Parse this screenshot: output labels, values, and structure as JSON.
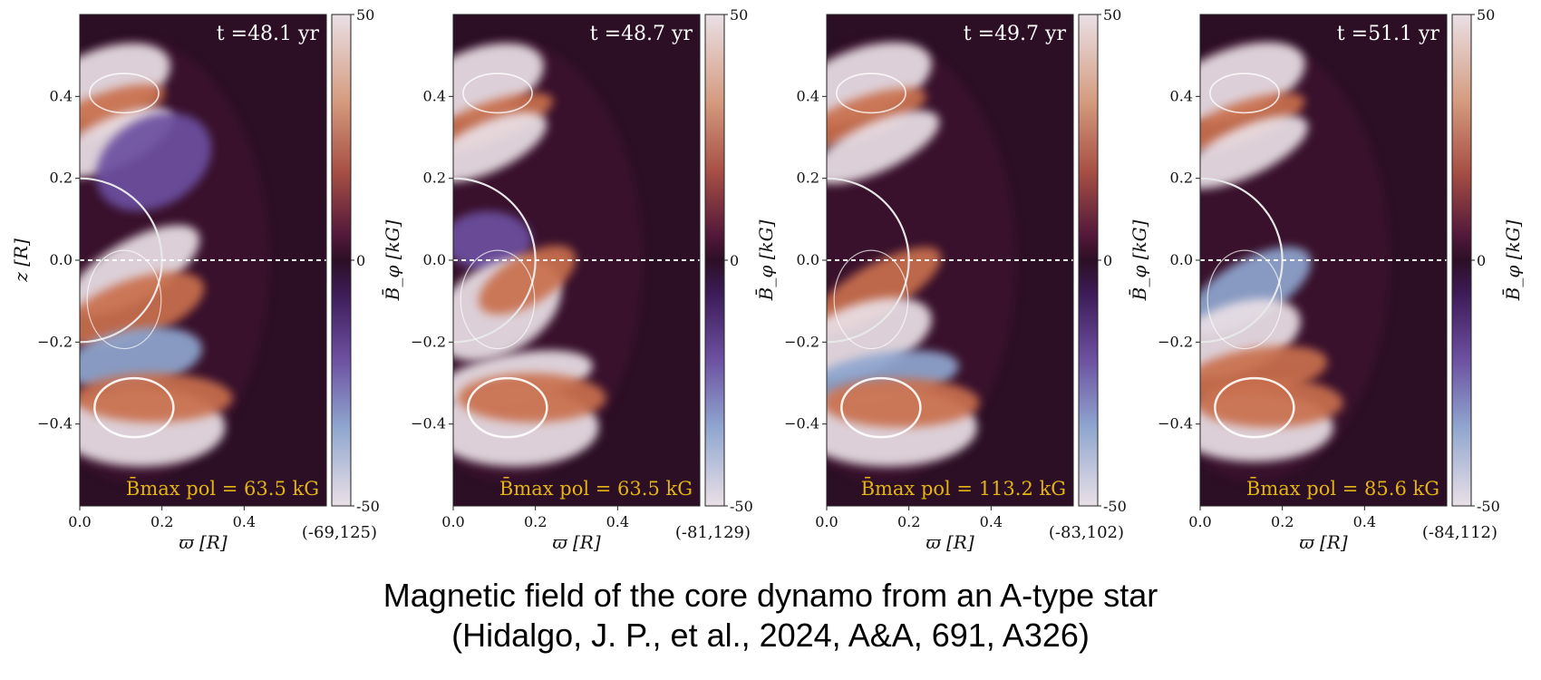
{
  "figure": {
    "caption_line1": "Magnetic field of the core dynamo from an A-type star",
    "caption_line2": "(Hidalgo, J. P., et al., 2024, A&A, 691, A326)",
    "colorbar_label": "B̄_φ [kG]",
    "colorbar_ticks": [
      "50",
      "0",
      "-50"
    ],
    "x_axis_label": "ϖ [R]",
    "y_axis_label": "z [R]",
    "x_ticks": [
      "0.0",
      "0.2",
      "0.4"
    ],
    "y_ticks": [
      "0.4",
      "0.2",
      "0.0",
      "−0.2",
      "−0.4"
    ],
    "colors": {
      "background": "#2c0f25",
      "positive_peak": "#c9704e",
      "negative_peak": "#6c4fa0",
      "saturated": "#eae0e6",
      "annotation": "#e2b514"
    }
  },
  "chart_data": {
    "type": "heatmap",
    "quantity": "B̄_φ [kG]",
    "color_range": [
      -50,
      50
    ],
    "xlim": [
      0.0,
      0.6
    ],
    "ylim": [
      -0.6,
      0.6
    ],
    "panels": [
      {
        "time_label": "t =48.1 yr",
        "bpol_label": "B̄max pol = 63.5 kG",
        "bpol_value": 63.5,
        "range_label": "(-69,125)",
        "range": [
          -69,
          125
        ]
      },
      {
        "time_label": "t =48.7 yr",
        "bpol_label": "B̄max pol = 63.5 kG",
        "bpol_value": 63.5,
        "range_label": "(-81,129)",
        "range": [
          -81,
          129
        ]
      },
      {
        "time_label": "t =49.7 yr",
        "bpol_label": "B̄max pol = 113.2 kG",
        "bpol_value": 113.2,
        "range_label": "(-83,102)",
        "range": [
          -83,
          102
        ]
      },
      {
        "time_label": "t =51.1 yr",
        "bpol_label": "B̄max pol = 85.6 kG",
        "bpol_value": 85.6,
        "range_label": "(-84,112)",
        "range": [
          -84,
          112
        ]
      }
    ]
  }
}
